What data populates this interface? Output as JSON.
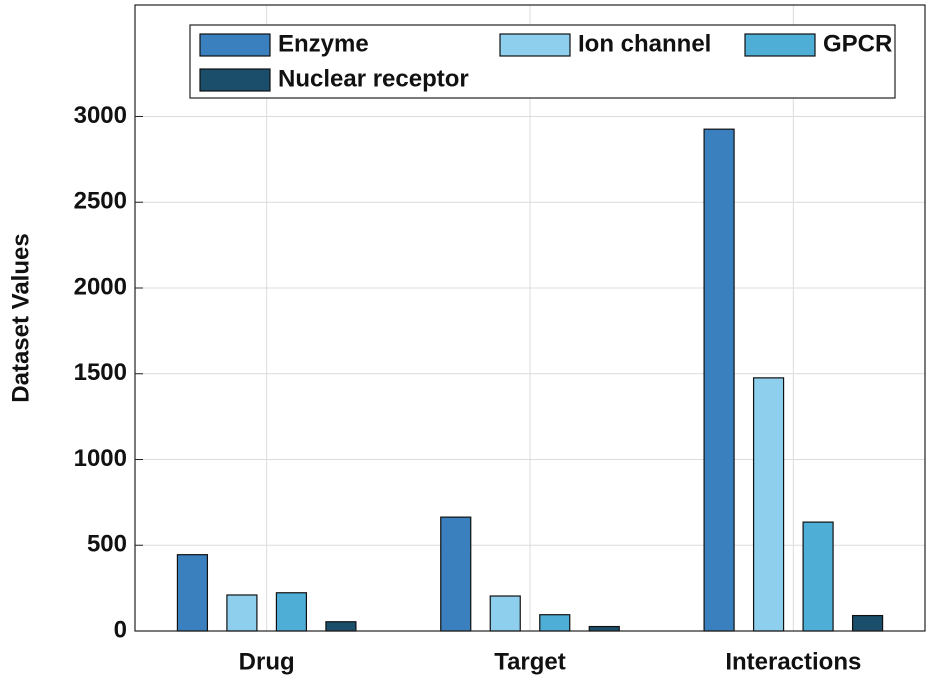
{
  "chart_data": {
    "type": "bar",
    "ylabel": "Dataset Values",
    "categories": [
      "Drug",
      "Target",
      "Interactions"
    ],
    "series": [
      {
        "name": "Enzyme",
        "color": "#3a80bf",
        "values": [
          445,
          664,
          2926
        ]
      },
      {
        "name": "Ion channel",
        "color": "#8ecfee",
        "values": [
          210,
          204,
          1476
        ]
      },
      {
        "name": "GPCR",
        "color": "#4eaed6",
        "values": [
          223,
          95,
          635
        ]
      },
      {
        "name": "Nuclear receptor",
        "color": "#1a4e6b",
        "values": [
          54,
          26,
          90
        ]
      }
    ],
    "ylim": [
      0,
      3650
    ],
    "yticks": [
      0,
      500,
      1000,
      1500,
      2000,
      2500,
      3000
    ],
    "grid": true,
    "legend": "top"
  }
}
